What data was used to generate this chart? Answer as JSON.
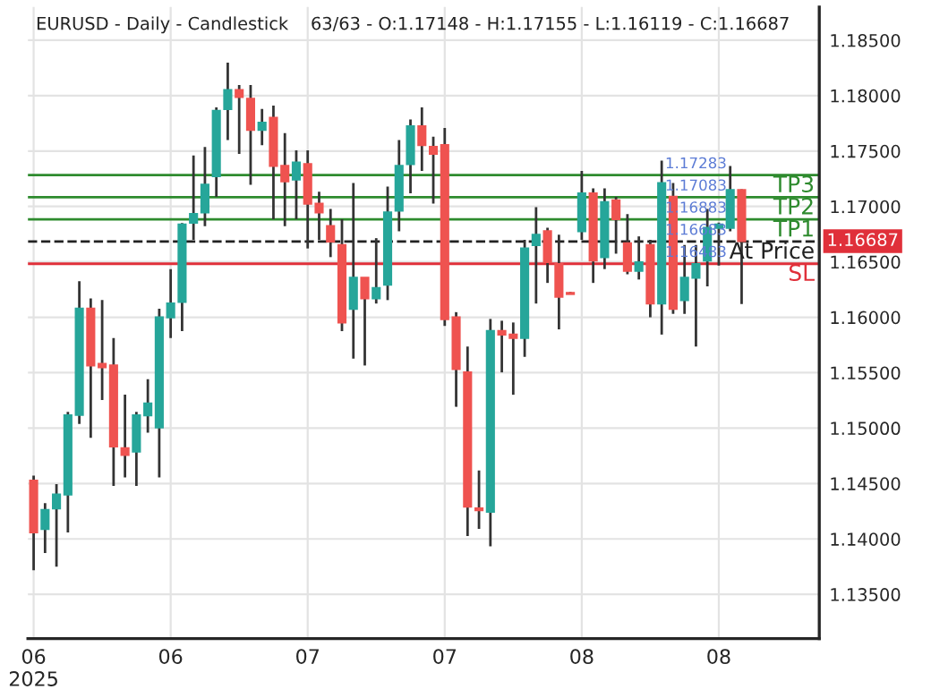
{
  "chart_data": {
    "type": "candlestick",
    "title": "EURUSD - Daily - Candlestick    63/63 - O:1.17148 - H:1.17155 - L:1.16119 - C:1.16687",
    "categories": [
      "06\n2025",
      null,
      null,
      null,
      null,
      null,
      null,
      null,
      null,
      null,
      null,
      null,
      "06",
      null,
      null,
      null,
      null,
      null,
      null,
      null,
      null,
      null,
      null,
      null,
      "07",
      null,
      null,
      null,
      null,
      null,
      null,
      null,
      null,
      null,
      null,
      null,
      "07",
      null,
      null,
      null,
      null,
      null,
      null,
      null,
      null,
      null,
      null,
      null,
      "08",
      null,
      null,
      null,
      null,
      null,
      null,
      null,
      null,
      null,
      null,
      null,
      "08",
      null,
      null
    ],
    "ohlc": [
      [
        1.14525,
        1.14571,
        1.13717,
        1.14059
      ],
      [
        1.1409,
        1.14323,
        1.13873,
        1.14261
      ],
      [
        1.14276,
        1.14494,
        1.13749,
        1.14401
      ],
      [
        1.14401,
        1.15146,
        1.14059,
        1.15115
      ],
      [
        1.1512,
        1.16326,
        1.15037,
        1.16078
      ],
      [
        1.16078,
        1.16171,
        1.14913,
        1.15565
      ],
      [
        1.1558,
        1.16155,
        1.15254,
        1.15549
      ],
      [
        1.15565,
        1.15813,
        1.14478,
        1.14835
      ],
      [
        1.14819,
        1.15301,
        1.14556,
        1.14757
      ],
      [
        1.14788,
        1.15146,
        1.14478,
        1.15115
      ],
      [
        1.15115,
        1.15441,
        1.14959,
        1.15223
      ],
      [
        1.15006,
        1.16077,
        1.14556,
        1.16
      ],
      [
        1.16,
        1.16435,
        1.15813,
        1.16124
      ],
      [
        1.16139,
        1.1685,
        1.15875,
        1.16838
      ],
      [
        1.16854,
        1.17459,
        1.16699,
        1.16932
      ],
      [
        1.16947,
        1.17537,
        1.16823,
        1.17196
      ],
      [
        1.17273,
        1.17894,
        1.17087,
        1.17863
      ],
      [
        1.17879,
        1.18298,
        1.17599,
        1.1805
      ],
      [
        1.1805,
        1.18096,
        1.17475,
        1.17988
      ],
      [
        1.17972,
        1.18096,
        1.17196,
        1.17692
      ],
      [
        1.17692,
        1.17879,
        1.17553,
        1.17755
      ],
      [
        1.17801,
        1.1791,
        1.16885,
        1.17366
      ],
      [
        1.17366,
        1.17661,
        1.16823,
        1.17227
      ],
      [
        1.17242,
        1.17506,
        1.16885,
        1.17397
      ],
      [
        1.17382,
        1.17506,
        1.16621,
        1.17025
      ],
      [
        1.17025,
        1.17133,
        1.16699,
        1.16947
      ],
      [
        1.16823,
        1.16978,
        1.16543,
        1.16683
      ],
      [
        1.16652,
        1.16885,
        1.15875,
        1.15953
      ],
      [
        1.16077,
        1.17211,
        1.15627,
        1.16357
      ],
      [
        1.16357,
        1.16357,
        1.15565,
        1.16171
      ],
      [
        1.16171,
        1.16714,
        1.16124,
        1.16264
      ],
      [
        1.16295,
        1.1718,
        1.16155,
        1.16947
      ],
      [
        1.16963,
        1.17599,
        1.16776,
        1.17366
      ],
      [
        1.17382,
        1.17786,
        1.17118,
        1.17724
      ],
      [
        1.17724,
        1.17894,
        1.1732,
        1.17553
      ],
      [
        1.17537,
        1.1763,
        1.17025,
        1.17475
      ],
      [
        1.17553,
        1.17708,
        1.15922,
        1.15984
      ],
      [
        1.16,
        1.16046,
        1.15192,
        1.15534
      ],
      [
        1.15503,
        1.15736,
        1.14027,
        1.14291
      ],
      [
        1.14276,
        1.14618,
        1.1409,
        1.1426
      ],
      [
        1.14245,
        1.15985,
        1.13934,
        1.15876
      ],
      [
        1.15876,
        1.15969,
        1.15503,
        1.15844
      ],
      [
        1.15844,
        1.15953,
        1.15301,
        1.15813
      ],
      [
        1.15813,
        1.16699,
        1.15643,
        1.16621
      ],
      [
        1.16652,
        1.16994,
        1.16124,
        1.16745
      ],
      [
        1.16776,
        1.16807,
        1.1631,
        1.16497
      ],
      [
        1.16481,
        1.16745,
        1.15891,
        1.16186
      ],
      [
        1.1622,
        1.1623,
        1.1621,
        1.1621
      ],
      [
        1.16776,
        1.1732,
        1.16699,
        1.17118
      ],
      [
        1.17118,
        1.17164,
        1.1631,
        1.16512
      ],
      [
        1.16543,
        1.17164,
        1.16435,
        1.1704
      ],
      [
        1.17056,
        1.17087,
        1.16574,
        1.16885
      ],
      [
        1.16667,
        1.16932,
        1.16388,
        1.16419
      ],
      [
        1.16419,
        1.1673,
        1.16341,
        1.16497
      ],
      [
        1.16652,
        1.16699,
        1.16,
        1.16124
      ],
      [
        1.16124,
        1.17413,
        1.15844,
        1.17211
      ],
      [
        1.17087,
        1.17211,
        1.16031,
        1.16077
      ],
      [
        1.16155,
        1.16652,
        1.16031,
        1.16357
      ],
      [
        1.16357,
        1.16652,
        1.15736,
        1.16481
      ],
      [
        1.16512,
        1.16978,
        1.16279,
        1.16807
      ],
      [
        1.16807,
        1.16854,
        1.16466,
        1.16838
      ],
      [
        1.16807,
        1.17366,
        1.16776,
        1.17149
      ],
      [
        1.17148,
        1.17155,
        1.16119,
        1.16687
      ]
    ],
    "colors": [
      "#ef5350",
      "#26a69a",
      "#26a69a",
      "#26a69a",
      "#26a69a",
      "#ef5350",
      "#ef5350",
      "#ef5350",
      "#ef5350",
      "#26a69a",
      "#26a69a",
      "#26a69a",
      "#26a69a",
      "#26a69a",
      "#26a69a",
      "#26a69a",
      "#26a69a",
      "#26a69a",
      "#ef5350",
      "#ef5350",
      "#26a69a",
      "#ef5350",
      "#ef5350",
      "#26a69a",
      "#ef5350",
      "#ef5350",
      "#ef5350",
      "#ef5350",
      "#26a69a",
      "#ef5350",
      "#26a69a",
      "#26a69a",
      "#26a69a",
      "#26a69a",
      "#ef5350",
      "#ef5350",
      "#ef5350",
      "#ef5350",
      "#ef5350",
      "#ef5350",
      "#26a69a",
      "#ef5350",
      "#ef5350",
      "#26a69a",
      "#26a69a",
      "#ef5350",
      "#ef5350",
      "#ef5350",
      "#26a69a",
      "#ef5350",
      "#26a69a",
      "#ef5350",
      "#ef5350",
      "#26a69a",
      "#ef5350",
      "#26a69a",
      "#ef5350",
      "#26a69a",
      "#26a69a",
      "#26a69a",
      "#26a69a",
      "#26a69a",
      "#ef5350"
    ],
    "ylim": [
      1.131,
      1.188
    ],
    "yticks": [
      {
        "value": 1.135,
        "label": "1.13500"
      },
      {
        "value": 1.14,
        "label": "1.14000"
      },
      {
        "value": 1.145,
        "label": "1.14500"
      },
      {
        "value": 1.15,
        "label": "1.15000"
      },
      {
        "value": 1.155,
        "label": "1.15500"
      },
      {
        "value": 1.16,
        "label": "1.16000"
      },
      {
        "value": 1.165,
        "label": "1.16500"
      },
      {
        "value": 1.17,
        "label": "1.17000"
      },
      {
        "value": 1.175,
        "label": "1.17500"
      },
      {
        "value": 1.18,
        "label": "1.18000"
      },
      {
        "value": 1.185,
        "label": "1.18500"
      }
    ],
    "ref_lines": [
      {
        "axis": "y",
        "value": 1.17283,
        "label": "TP3",
        "color": "#2e8b2e",
        "line_style": "solid"
      },
      {
        "axis": "y",
        "value": 1.17083,
        "label": "TP2",
        "color": "#2e8b2e",
        "line_style": "solid"
      },
      {
        "axis": "y",
        "value": 1.16883,
        "label": "TP1",
        "color": "#2e8b2e",
        "line_style": "solid"
      },
      {
        "axis": "y",
        "value": 1.16683,
        "label": "At Price",
        "color": "#222222",
        "line_style": "dashed"
      },
      {
        "axis": "y",
        "value": 1.16483,
        "label": "SL",
        "color": "#e0303a",
        "line_style": "solid"
      }
    ],
    "annotations": [
      {
        "text": "1.17283",
        "y": 1.17283
      },
      {
        "text": "1.17083",
        "y": 1.17083
      },
      {
        "text": "1.16883",
        "y": 1.16883
      },
      {
        "text": "1.16683",
        "y": 1.16683
      },
      {
        "text": "1.16483",
        "y": 1.16483
      },
      "1.16687"
    ],
    "grid": true,
    "legend": false
  }
}
